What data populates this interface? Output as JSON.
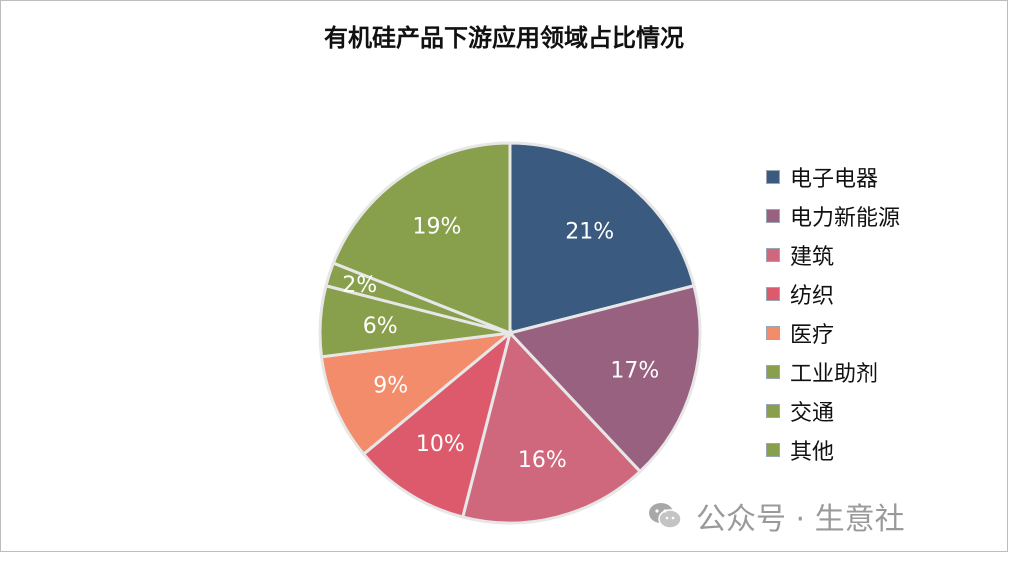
{
  "chart_data": {
    "type": "pie",
    "title": "有机硅产品下游应用领域占比情况",
    "slices": [
      {
        "name": "电子电器",
        "value": 21,
        "label": "21%",
        "color": "#3a5a7f"
      },
      {
        "name": "电力新能源",
        "value": 17,
        "label": "17%",
        "color": "#97617f"
      },
      {
        "name": "建筑",
        "value": 16,
        "label": "16%",
        "color": "#d0687d"
      },
      {
        "name": "纺织",
        "value": 10,
        "label": "10%",
        "color": "#dd5a6c"
      },
      {
        "name": "医疗",
        "value": 9,
        "label": "9%",
        "color": "#f28c6a"
      },
      {
        "name": "工业助剂",
        "value": 6,
        "label": "6%",
        "color": "#88a04c"
      },
      {
        "name": "交通",
        "value": 2,
        "label": "2%",
        "color": "#88a04c"
      },
      {
        "name": "其他",
        "value": 19,
        "label": "19%",
        "color": "#88a04c"
      }
    ],
    "legend_position": "right"
  },
  "watermark": {
    "text": "公众号 · 生意社"
  }
}
